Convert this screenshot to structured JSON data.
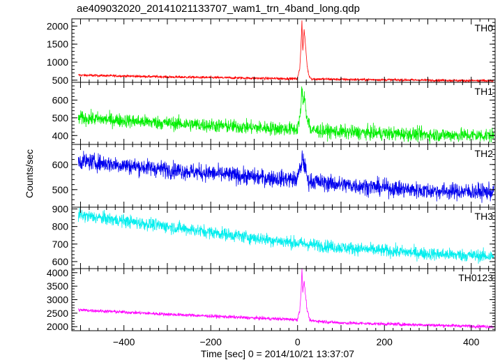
{
  "chart_data": {
    "type": "line",
    "title": "ae409032020_20141021133707_wam1_trn_4band_long.qdp",
    "xlabel": "Time [sec] 0 = 2014/10/21 13:37:07",
    "ylabel": "Counts/sec",
    "xlim": [
      -520,
      455
    ],
    "x_ticks": [
      -400,
      -200,
      0,
      200,
      400
    ],
    "x_tick_labels": [
      "−400",
      "−200",
      "0",
      "200",
      "400"
    ],
    "panels": [
      {
        "name": "TH0",
        "color": "#ff0000",
        "ylim": [
          440,
          2200
        ],
        "y_ticks": [
          500,
          1000,
          1500,
          2000
        ],
        "y_tick_labels": [
          "500",
          "1000",
          "1500",
          "2000"
        ],
        "trend": [
          [
            -505,
            640
          ],
          [
            -300,
            590
          ],
          [
            -100,
            555
          ],
          [
            0,
            540
          ],
          [
            100,
            520
          ],
          [
            300,
            500
          ],
          [
            450,
            480
          ]
        ],
        "burst": [
          [
            0,
            560
          ],
          [
            5,
            820
          ],
          [
            8,
            1500
          ],
          [
            10,
            2150
          ],
          [
            12,
            1300
          ],
          [
            15,
            1900
          ],
          [
            18,
            1500
          ],
          [
            22,
            900
          ],
          [
            26,
            620
          ],
          [
            32,
            540
          ]
        ],
        "noise": 25
      },
      {
        "name": "TH1",
        "color": "#00ee00",
        "ylim": [
          350,
          700
        ],
        "y_ticks": [
          400,
          500,
          600
        ],
        "y_tick_labels": [
          "400",
          "500",
          "600"
        ],
        "trend": [
          [
            -505,
            500
          ],
          [
            -300,
            470
          ],
          [
            -100,
            445
          ],
          [
            0,
            435
          ],
          [
            100,
            420
          ],
          [
            300,
            405
          ],
          [
            450,
            400
          ]
        ],
        "burst": [
          [
            0,
            450
          ],
          [
            7,
            520
          ],
          [
            10,
            680
          ],
          [
            13,
            560
          ],
          [
            16,
            630
          ],
          [
            20,
            520
          ],
          [
            28,
            460
          ]
        ],
        "noise": 28
      },
      {
        "name": "TH2",
        "color": "#0000ee",
        "ylim": [
          430,
          680
        ],
        "y_ticks": [
          500,
          600
        ],
        "y_tick_labels": [
          "500",
          "600"
        ],
        "trend": [
          [
            -505,
            615
          ],
          [
            -300,
            580
          ],
          [
            -100,
            550
          ],
          [
            0,
            540
          ],
          [
            100,
            520
          ],
          [
            300,
            495
          ],
          [
            450,
            490
          ]
        ],
        "burst": [
          [
            0,
            555
          ],
          [
            8,
            590
          ],
          [
            11,
            635
          ],
          [
            15,
            600
          ],
          [
            22,
            560
          ]
        ],
        "noise": 24
      },
      {
        "name": "TH3",
        "color": "#00eeee",
        "ylim": [
          560,
          910
        ],
        "y_ticks": [
          600,
          700,
          800,
          900
        ],
        "y_tick_labels": [
          "600",
          "700",
          "800",
          "900"
        ],
        "trend": [
          [
            -505,
            865
          ],
          [
            -300,
            800
          ],
          [
            -100,
            735
          ],
          [
            0,
            705
          ],
          [
            100,
            680
          ],
          [
            300,
            645
          ],
          [
            450,
            630
          ]
        ],
        "burst": [
          [
            0,
            705
          ]
        ],
        "noise": 26
      },
      {
        "name": "TH0123",
        "color": "#ff00ff",
        "ylim": [
          1850,
          4150
        ],
        "y_ticks": [
          2000,
          2500,
          3000,
          3500,
          4000
        ],
        "y_tick_labels": [
          "2000",
          "2500",
          "3000",
          "3500",
          "4000"
        ],
        "trend": [
          [
            -505,
            2620
          ],
          [
            -300,
            2460
          ],
          [
            -100,
            2320
          ],
          [
            0,
            2260
          ],
          [
            100,
            2140
          ],
          [
            300,
            2060
          ],
          [
            450,
            2000
          ]
        ],
        "burst": [
          [
            0,
            2300
          ],
          [
            5,
            2600
          ],
          [
            8,
            3300
          ],
          [
            10,
            4100
          ],
          [
            12,
            3300
          ],
          [
            15,
            3700
          ],
          [
            18,
            3200
          ],
          [
            22,
            2600
          ],
          [
            28,
            2250
          ]
        ],
        "noise": 45
      }
    ]
  }
}
